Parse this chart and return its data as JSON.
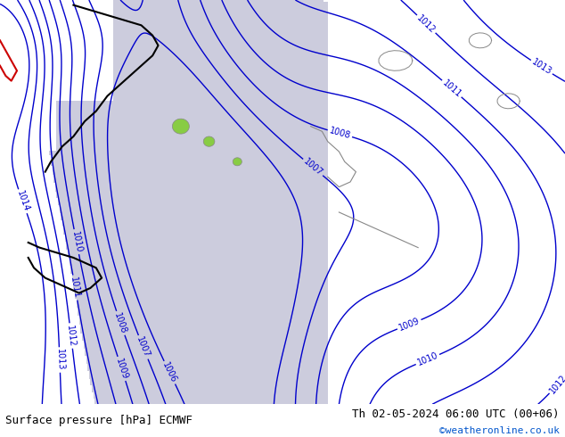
{
  "title_left": "Surface pressure [hPa] ECMWF",
  "title_right": "Th 02-05-2024 06:00 UTC (00+06)",
  "copyright": "©weatheronline.co.uk",
  "contour_color": "#0000cc",
  "contour_linewidth": 1.0,
  "label_color": "#0000cc",
  "label_fontsize": 7,
  "figsize": [
    6.34,
    4.9
  ],
  "dpi": 100,
  "land_green": "#88cc44",
  "sea_grey": "#ccccdd",
  "coast_black": "#000000",
  "coast_red": "#cc0000",
  "coast_grey": "#888888"
}
